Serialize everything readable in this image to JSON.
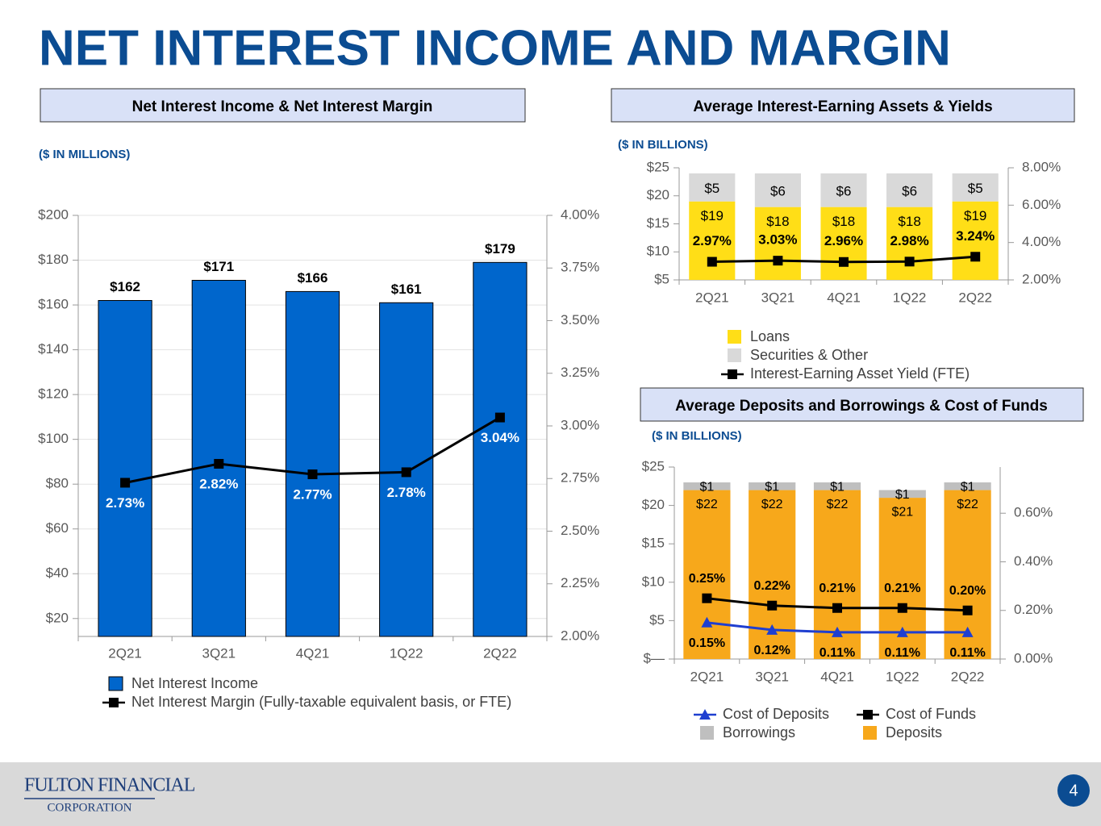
{
  "title": "NET INTEREST INCOME AND MARGIN",
  "chart_data": [
    {
      "type": "bar",
      "title": "Net Interest Income & Net Interest Margin",
      "subtitle": "($ IN MILLIONS)",
      "categories": [
        "2Q21",
        "3Q21",
        "4Q21",
        "1Q22",
        "2Q22"
      ],
      "series": [
        {
          "name": "Net Interest Income",
          "type": "bar",
          "color": "#0066cc",
          "values": [
            162,
            171,
            166,
            161,
            179
          ],
          "value_labels": [
            "$162",
            "$171",
            "$166",
            "$161",
            "$179"
          ]
        },
        {
          "name": "Net Interest Margin (Fully-taxable equivalent basis, or FTE)",
          "type": "line",
          "axis": "y2",
          "color": "#000000",
          "marker": "square",
          "values": [
            2.73,
            2.82,
            2.77,
            2.78,
            3.04
          ],
          "value_labels": [
            "2.73%",
            "2.82%",
            "2.77%",
            "2.78%",
            "3.04%"
          ]
        }
      ],
      "ylim": [
        12,
        200
      ],
      "yticks": [
        {
          "value": 20,
          "label": "$20"
        },
        {
          "value": 40,
          "label": "$40"
        },
        {
          "value": 60,
          "label": "$60"
        },
        {
          "value": 80,
          "label": "$80"
        },
        {
          "value": 100,
          "label": "$100"
        },
        {
          "value": 120,
          "label": "$120"
        },
        {
          "value": 140,
          "label": "$140"
        },
        {
          "value": 160,
          "label": "$160"
        },
        {
          "value": 180,
          "label": "$180"
        },
        {
          "value": 200,
          "label": "$200"
        }
      ],
      "y2lim": [
        2,
        4
      ],
      "y2ticks": [
        {
          "value": 2,
          "label": "2.00%"
        },
        {
          "value": 2.25,
          "label": "2.25%"
        },
        {
          "value": 2.5,
          "label": "2.50%"
        },
        {
          "value": 2.75,
          "label": "2.75%"
        },
        {
          "value": 3,
          "label": "3.00%"
        },
        {
          "value": 3.25,
          "label": "3.25%"
        },
        {
          "value": 3.5,
          "label": "3.50%"
        },
        {
          "value": 3.75,
          "label": "3.75%"
        },
        {
          "value": 4,
          "label": "4.00%"
        }
      ],
      "grid": true
    },
    {
      "type": "bar",
      "stacked": true,
      "title": "Average Interest-Earning Assets & Yields",
      "subtitle": "($ IN BILLIONS)",
      "categories": [
        "2Q21",
        "3Q21",
        "4Q21",
        "1Q22",
        "2Q22"
      ],
      "series": [
        {
          "name": "Loans",
          "type": "bar",
          "color": "#ffde17",
          "values": [
            19,
            18,
            18,
            18,
            19
          ],
          "value_labels": [
            "$19",
            "$18",
            "$18",
            "$18",
            "$19"
          ]
        },
        {
          "name": "Securities & Other",
          "type": "bar",
          "color": "#d9d9d9",
          "values": [
            5,
            6,
            6,
            6,
            5
          ],
          "value_labels": [
            "$5",
            "$6",
            "$6",
            "$6",
            "$5"
          ]
        },
        {
          "name": "Interest-Earning Asset Yield (FTE)",
          "type": "line",
          "axis": "y2",
          "color": "#000000",
          "marker": "square",
          "values": [
            2.97,
            3.03,
            2.96,
            2.98,
            3.24
          ],
          "value_labels": [
            "2.97%",
            "3.03%",
            "2.96%",
            "2.98%",
            "3.24%"
          ]
        }
      ],
      "ylim": [
        5,
        25
      ],
      "yticks": [
        {
          "value": 5,
          "label": "$5"
        },
        {
          "value": 10,
          "label": "$10"
        },
        {
          "value": 15,
          "label": "$15"
        },
        {
          "value": 20,
          "label": "$20"
        },
        {
          "value": 25,
          "label": "$25"
        }
      ],
      "y2lim": [
        2,
        8
      ],
      "y2ticks": [
        {
          "value": 2,
          "label": "2.00%"
        },
        {
          "value": 4,
          "label": "4.00%"
        },
        {
          "value": 6,
          "label": "6.00%"
        },
        {
          "value": 8,
          "label": "8.00%"
        }
      ],
      "grid": false
    },
    {
      "type": "bar",
      "stacked": true,
      "title": "Average Deposits and Borrowings & Cost of Funds",
      "subtitle": "($ IN BILLIONS)",
      "categories": [
        "2Q21",
        "3Q21",
        "4Q21",
        "1Q22",
        "2Q22"
      ],
      "series": [
        {
          "name": "Deposits",
          "type": "bar",
          "color": "#f7a81b",
          "values": [
            22,
            22,
            22,
            21,
            22
          ],
          "value_labels": [
            "$22",
            "$22",
            "$22",
            "$21",
            "$22"
          ]
        },
        {
          "name": "Borrowings",
          "type": "bar",
          "color": "#bfbfbf",
          "values": [
            1,
            1,
            1,
            1,
            1
          ],
          "value_labels": [
            "$1",
            "$1",
            "$1",
            "$1",
            "$1"
          ]
        },
        {
          "name": "Cost of Deposits",
          "type": "line",
          "axis": "y2",
          "color": "#1f3fd0",
          "marker": "triangle",
          "values": [
            0.15,
            0.12,
            0.11,
            0.11,
            0.11
          ],
          "value_labels": [
            "0.15%",
            "0.12%",
            "0.11%",
            "0.11%",
            "0.11%"
          ]
        },
        {
          "name": "Cost of Funds",
          "type": "line",
          "axis": "y2",
          "color": "#000000",
          "marker": "square",
          "values": [
            0.25,
            0.22,
            0.21,
            0.21,
            0.2
          ],
          "value_labels": [
            "0.25%",
            "0.22%",
            "0.21%",
            "0.21%",
            "0.20%"
          ]
        }
      ],
      "ylim": [
        0,
        25
      ],
      "yticks": [
        {
          "value": 0,
          "label": "$—"
        },
        {
          "value": 5,
          "label": "$5"
        },
        {
          "value": 10,
          "label": "$10"
        },
        {
          "value": 15,
          "label": "$15"
        },
        {
          "value": 20,
          "label": "$20"
        },
        {
          "value": 25,
          "label": "$25"
        }
      ],
      "y2lim": [
        0,
        0.79
      ],
      "y2ticks": [
        {
          "value": 0,
          "label": "0.00%"
        },
        {
          "value": 0.2,
          "label": "0.20%"
        },
        {
          "value": 0.4,
          "label": "0.40%"
        },
        {
          "value": 0.6,
          "label": "0.60%"
        }
      ],
      "grid": false
    }
  ],
  "footer": {
    "logo_line1": "FULTON FINANCIAL",
    "logo_line2": "CORPORATION",
    "page_number": "4"
  }
}
